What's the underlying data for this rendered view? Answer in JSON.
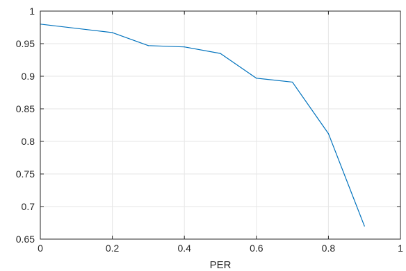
{
  "chart_data": {
    "type": "line",
    "title": "",
    "xlabel": "PER",
    "ylabel": "",
    "xlim": [
      0,
      1
    ],
    "ylim": [
      0.65,
      1
    ],
    "xticks": [
      0,
      0.2,
      0.4,
      0.6,
      0.8,
      1
    ],
    "xtick_labels": [
      "0",
      "0.2",
      "0.4",
      "0.6",
      "0.8",
      "1"
    ],
    "yticks": [
      0.65,
      0.7,
      0.75,
      0.8,
      0.85,
      0.9,
      0.95,
      1
    ],
    "ytick_labels": [
      "0.65",
      "0.7",
      "0.75",
      "0.8",
      "0.85",
      "0.9",
      "0.95",
      "1"
    ],
    "grid": true,
    "legend": "none",
    "series": [
      {
        "color": "#0072BD",
        "x": [
          0,
          0.2,
          0.3,
          0.4,
          0.5,
          0.6,
          0.7,
          0.8,
          0.9
        ],
        "y": [
          0.98,
          0.967,
          0.947,
          0.945,
          0.935,
          0.897,
          0.891,
          0.812,
          0.67
        ]
      }
    ]
  }
}
